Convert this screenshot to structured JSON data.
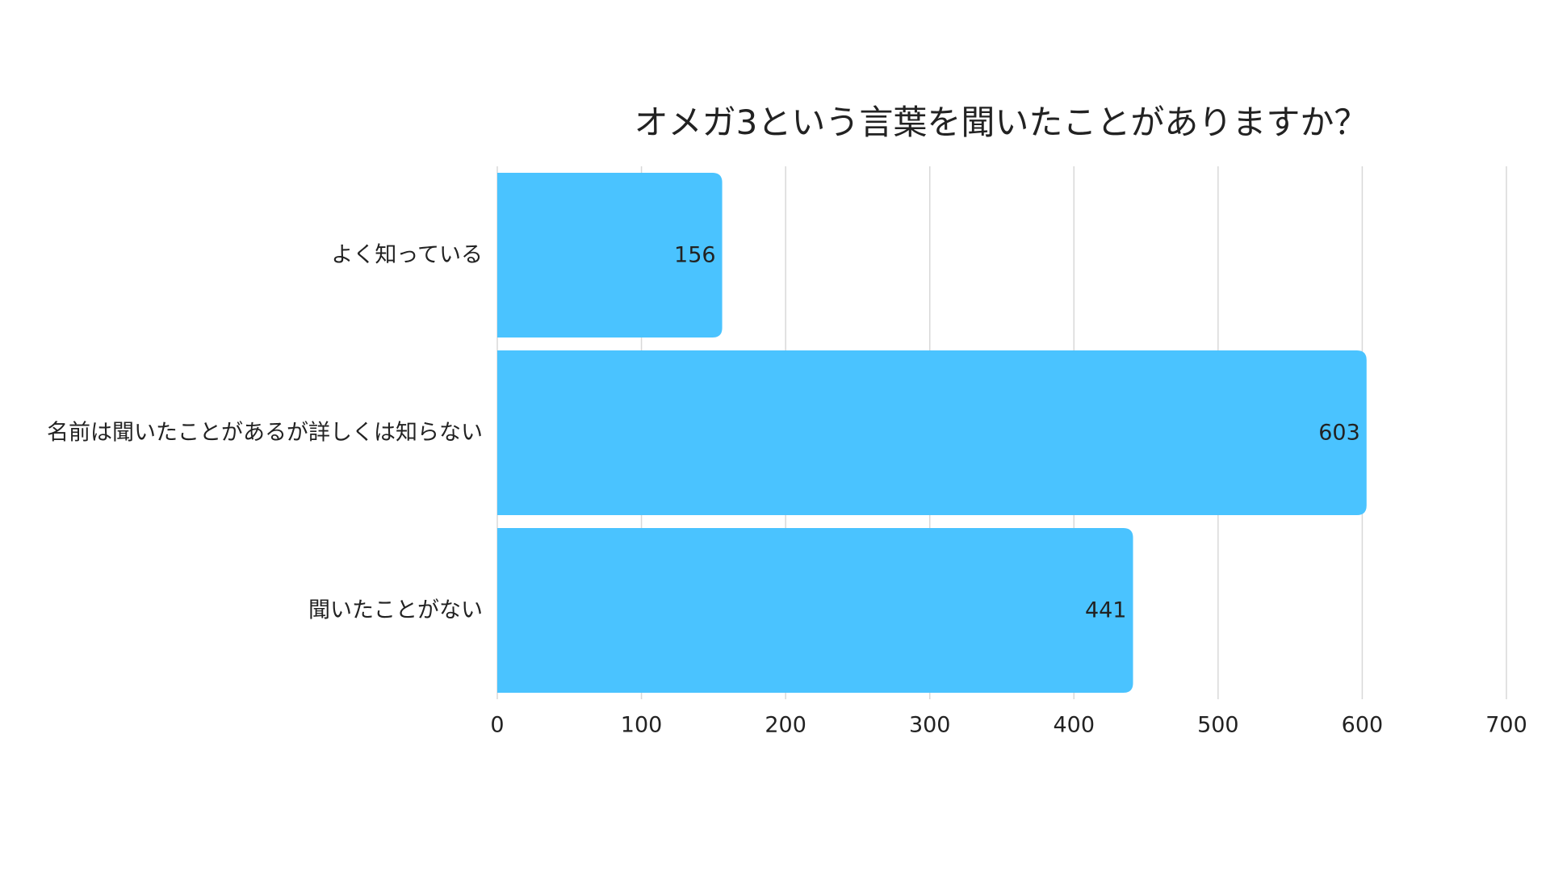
{
  "chart_data": {
    "type": "bar",
    "orientation": "horizontal",
    "title": "オメガ3という言葉を聞いたことがありますか？",
    "categories": [
      "よく知っている",
      "名前は聞いたことがあるが詳しくは知らない",
      "聞いたことがない"
    ],
    "values": [
      156,
      603,
      441
    ],
    "xlim": [
      0,
      700
    ],
    "x_ticks": [
      0,
      100,
      200,
      300,
      400,
      500,
      600,
      700
    ],
    "grid": true,
    "legend": "none",
    "bar_color": "#4AC3FF"
  }
}
